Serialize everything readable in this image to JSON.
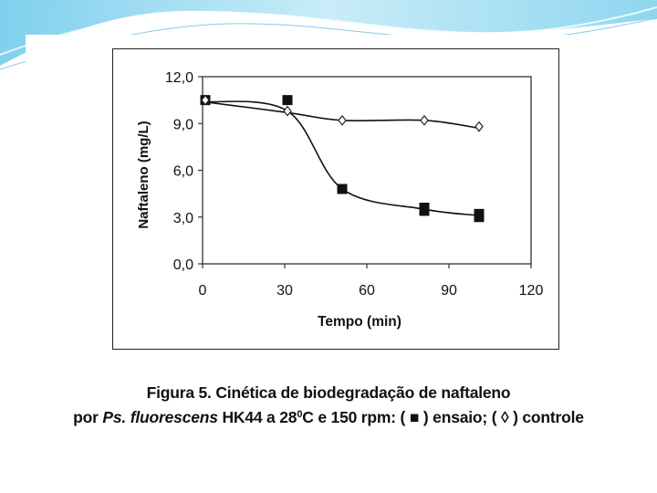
{
  "slide": {
    "accent": "#3aa7d6",
    "bg": "#ffffff"
  },
  "chart_data": {
    "type": "line",
    "title": "",
    "xlabel": "Tempo (min)",
    "ylabel": "Naftaleno (mg/L)",
    "xlim": [
      0,
      120
    ],
    "ylim": [
      0,
      12
    ],
    "x_ticks": [
      0,
      30,
      60,
      90,
      120
    ],
    "x_tick_labels": [
      "0",
      "30",
      "60",
      "90",
      "120"
    ],
    "y_ticks": [
      0,
      3,
      6,
      9,
      12
    ],
    "y_tick_labels": [
      "0,0",
      "3,0",
      "6,0",
      "9,0",
      "12,0"
    ],
    "grid": false,
    "series": [
      {
        "name": "ensaio",
        "marker": "filled-square",
        "color": "#111111",
        "points": [
          [
            1,
            10.5
          ],
          [
            31,
            10.5
          ],
          [
            51,
            4.8
          ],
          [
            81,
            3.6
          ],
          [
            81,
            3.4
          ],
          [
            101,
            3.2
          ],
          [
            101,
            3.0
          ]
        ],
        "curve": [
          [
            0,
            10.4
          ],
          [
            31,
            9.8
          ],
          [
            51,
            4.8
          ],
          [
            81,
            3.5
          ],
          [
            101,
            3.1
          ]
        ]
      },
      {
        "name": "controle",
        "marker": "open-diamond",
        "color": "#111111",
        "points": [
          [
            1,
            10.5
          ],
          [
            31,
            9.8
          ],
          [
            51,
            9.2
          ],
          [
            81,
            9.2
          ],
          [
            101,
            8.8
          ]
        ],
        "curve": [
          [
            0,
            10.4
          ],
          [
            31,
            9.7
          ],
          [
            51,
            9.2
          ],
          [
            81,
            9.2
          ],
          [
            101,
            8.7
          ]
        ]
      }
    ]
  },
  "caption": {
    "line1": "Figura 5. Cinética de biodegradação de naftaleno",
    "line2_prefix": "por ",
    "line2_species": "Ps. fluorescens",
    "line2_strain_temp": " HK44 a 28",
    "line2_superscript": "0",
    "line2_rest": "C e 150 rpm: ( ■ ) ensaio; ( ◊ ) controle"
  }
}
